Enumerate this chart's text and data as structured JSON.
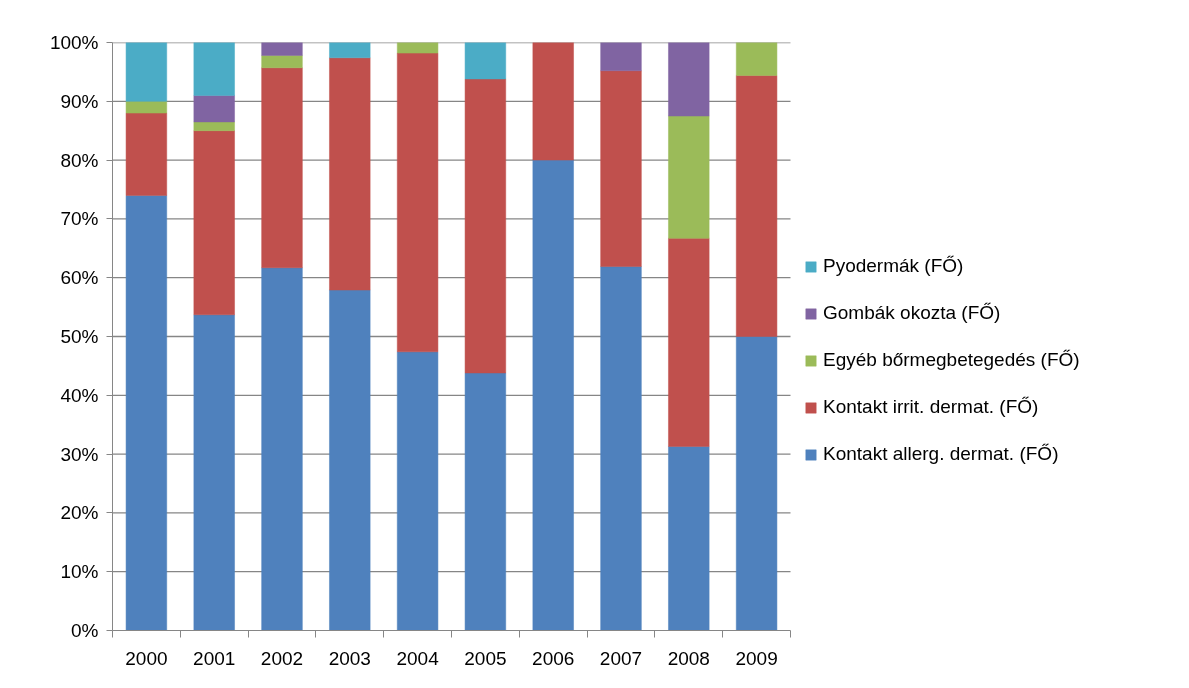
{
  "chart_data": {
    "type": "bar",
    "stacked": true,
    "categories": [
      "2000",
      "2001",
      "2002",
      "2003",
      "2004",
      "2005",
      "2006",
      "2007",
      "2008",
      "2009"
    ],
    "series": [
      {
        "name": "Kontakt allerg. dermat. (FŐ)",
        "color": "#4f81bd",
        "values": [
          74,
          53.7,
          61.7,
          57.9,
          47.4,
          43.8,
          80,
          61.9,
          31.3,
          50
        ]
      },
      {
        "name": "Kontakt irrit. dermat. (FŐ)",
        "color": "#c0504d",
        "values": [
          14,
          31.3,
          34.0,
          39.5,
          50.8,
          50,
          20,
          33.3,
          35.4,
          44.4
        ]
      },
      {
        "name": "Egyéb bőrmegbetegedés (FŐ)",
        "color": "#9bbb59",
        "values": [
          2,
          1.5,
          2.1,
          0,
          1.8,
          0,
          0,
          0,
          20.8,
          5.6
        ]
      },
      {
        "name": "Gombák okozta (FŐ)",
        "color": "#8064a2",
        "values": [
          0,
          4.5,
          2.2,
          0,
          0,
          0,
          0,
          4.8,
          12.5,
          0
        ]
      },
      {
        "name": "Pyodermák (FŐ)",
        "color": "#4bacc6",
        "values": [
          10,
          9.0,
          0,
          2.6,
          0,
          6.2,
          0,
          0,
          0,
          0
        ]
      }
    ],
    "ylim": [
      0,
      100
    ],
    "yticks": [
      {
        "value": 0,
        "label": "0%"
      },
      {
        "value": 10,
        "label": "10%"
      },
      {
        "value": 20,
        "label": "20%"
      },
      {
        "value": 30,
        "label": "30%"
      },
      {
        "value": 40,
        "label": "40%"
      },
      {
        "value": 50,
        "label": "50%"
      },
      {
        "value": 60,
        "label": "60%"
      },
      {
        "value": 70,
        "label": "70%"
      },
      {
        "value": 80,
        "label": "80%"
      },
      {
        "value": 90,
        "label": "90%"
      },
      {
        "value": 100,
        "label": "100%"
      }
    ],
    "grid": "y",
    "legend": "right"
  }
}
